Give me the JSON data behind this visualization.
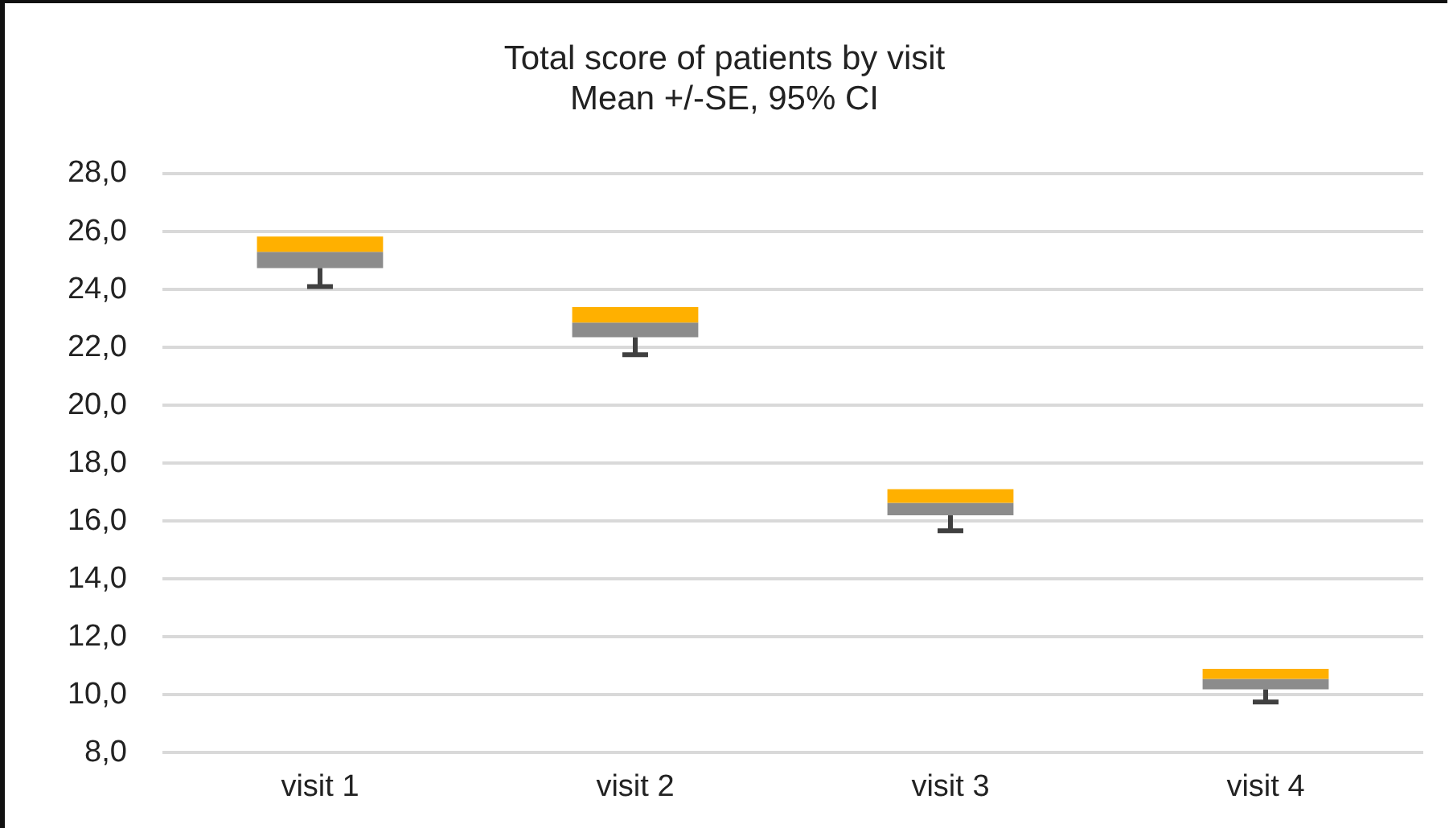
{
  "chart_data": {
    "type": "box",
    "title": "Total score of patients by visit",
    "subtitle": "Mean +/-SE, 95% CI",
    "categories": [
      "visit 1",
      "visit 2",
      "visit 3",
      "visit 4"
    ],
    "series": [
      {
        "color": "#ffb000",
        "colors": [
          "#8c8c8c",
          "#8c8c8c",
          "#8c8c8c",
          "#8c8c8c"
        ],
        "boxes": [
          {
            "low": 24.1,
            "q1": 24.74,
            "median": 25.3,
            "q3": 25.83,
            "high": 25.83
          },
          {
            "low": 21.75,
            "q1": 22.35,
            "median": 22.86,
            "q3": 23.39,
            "high": 23.39
          },
          {
            "low": 15.67,
            "q1": 16.2,
            "median": 16.63,
            "q3": 17.1,
            "high": 17.1
          },
          {
            "low": 9.75,
            "q1": 10.19,
            "median": 10.55,
            "q3": 10.9,
            "high": 10.9
          }
        ]
      }
    ],
    "ylim": [
      8,
      28
    ],
    "yticks": [
      {
        "value": 8,
        "label": "8,0"
      },
      {
        "value": 10,
        "label": "10,0"
      },
      {
        "value": 12,
        "label": "12,0"
      },
      {
        "value": 14,
        "label": "14,0"
      },
      {
        "value": 16,
        "label": "16,0"
      },
      {
        "value": 18,
        "label": "18,0"
      },
      {
        "value": 20,
        "label": "20,0"
      },
      {
        "value": 22,
        "label": "22,0"
      },
      {
        "value": 24,
        "label": "24,0"
      },
      {
        "value": 26,
        "label": "26,0"
      },
      {
        "value": 28,
        "label": "28,0"
      }
    ],
    "grid": "y"
  }
}
